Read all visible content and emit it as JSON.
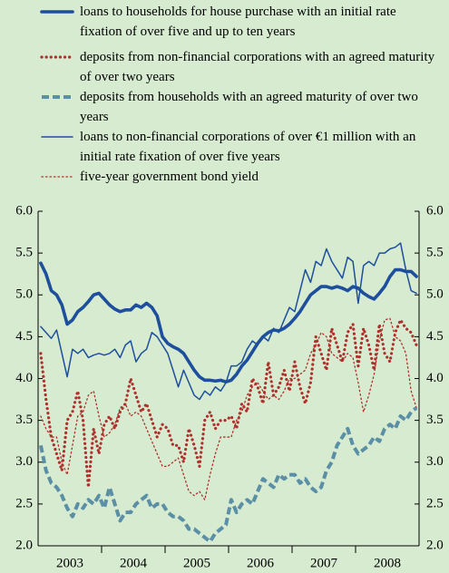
{
  "chart_data": {
    "type": "line",
    "categories": [
      "2003",
      null,
      null,
      null,
      null,
      null,
      null,
      null,
      null,
      null,
      null,
      null,
      "2004",
      null,
      null,
      null,
      null,
      null,
      null,
      null,
      null,
      null,
      null,
      null,
      "2005",
      null,
      null,
      null,
      null,
      null,
      null,
      null,
      null,
      null,
      null,
      null,
      "2006",
      null,
      null,
      null,
      null,
      null,
      null,
      null,
      null,
      null,
      null,
      null,
      "2007",
      null,
      null,
      null,
      null,
      null,
      null,
      null,
      null,
      null,
      null,
      null,
      "2008",
      null,
      null,
      null,
      null,
      null,
      null,
      null,
      null,
      null,
      null,
      null
    ],
    "ylim": [
      2,
      6
    ],
    "yticks": [
      {
        "value": 2,
        "label": "2.0"
      },
      {
        "value": 2.5,
        "label": "2.5"
      },
      {
        "value": 3,
        "label": "3.0"
      },
      {
        "value": 3.5,
        "label": "3.5"
      },
      {
        "value": 4,
        "label": "4.0"
      },
      {
        "value": 4.5,
        "label": "4.5"
      },
      {
        "value": 5,
        "label": "5.0"
      },
      {
        "value": 5.5,
        "label": "5.5"
      },
      {
        "value": 6,
        "label": "6.0"
      }
    ],
    "y2lim": [
      2,
      6
    ],
    "y2ticks": [
      {
        "value": 2,
        "label": "2.0"
      },
      {
        "value": 2.5,
        "label": "2.5"
      },
      {
        "value": 3,
        "label": "3.0"
      },
      {
        "value": 3.5,
        "label": "3.5"
      },
      {
        "value": 4,
        "label": "4.0"
      },
      {
        "value": 4.5,
        "label": "4.5"
      },
      {
        "value": 5,
        "label": "5.0"
      },
      {
        "value": 5.5,
        "label": "5.5"
      },
      {
        "value": 6,
        "label": "6.0"
      }
    ],
    "grid": false,
    "legend": "top",
    "series": [
      {
        "name": "loans to households for house purchase with an initial rate fixation of over five and up to ten years",
        "color": "#1e4f9c",
        "style": "thick-solid",
        "values": [
          5.38,
          5.25,
          5.05,
          5.0,
          4.88,
          4.65,
          4.7,
          4.8,
          4.85,
          4.92,
          5.0,
          5.02,
          4.95,
          4.88,
          4.83,
          4.8,
          4.82,
          4.82,
          4.88,
          4.85,
          4.9,
          4.85,
          4.75,
          4.5,
          4.42,
          4.38,
          4.35,
          4.3,
          4.2,
          4.1,
          4.02,
          3.98,
          3.98,
          3.97,
          3.98,
          3.96,
          3.98,
          4.05,
          4.15,
          4.22,
          4.32,
          4.42,
          4.5,
          4.55,
          4.58,
          4.57,
          4.6,
          4.65,
          4.72,
          4.8,
          4.9,
          5.0,
          5.05,
          5.1,
          5.1,
          5.08,
          5.1,
          5.08,
          5.05,
          5.1,
          5.08,
          5.02,
          4.98,
          4.95,
          5.02,
          5.1,
          5.22,
          5.3,
          5.3,
          5.28,
          5.28,
          5.22
        ]
      },
      {
        "name": "deposits from non-financial corporations with an agreed maturity of over two years",
        "color": "#b0302c",
        "style": "thick-dotted",
        "values": [
          4.3,
          3.75,
          3.3,
          3.1,
          2.9,
          3.5,
          3.6,
          3.85,
          3.5,
          2.7,
          3.4,
          3.1,
          3.45,
          3.55,
          3.4,
          3.6,
          3.7,
          4.0,
          3.8,
          3.6,
          3.7,
          3.5,
          3.3,
          3.45,
          3.4,
          3.2,
          3.2,
          3.0,
          3.4,
          3.2,
          2.95,
          3.5,
          3.6,
          3.4,
          3.5,
          3.5,
          3.55,
          3.4,
          3.7,
          3.6,
          4.0,
          3.9,
          3.7,
          4.2,
          3.8,
          3.9,
          4.1,
          3.85,
          4.2,
          3.9,
          3.7,
          3.95,
          4.5,
          4.3,
          4.1,
          4.6,
          4.4,
          4.2,
          4.55,
          4.65,
          4.15,
          4.6,
          4.4,
          4.1,
          4.65,
          4.3,
          4.2,
          4.55,
          4.7,
          4.6,
          4.55,
          4.4
        ]
      },
      {
        "name": "deposits from households with an agreed maturity of over two years",
        "color": "#5b8fa6",
        "style": "thick-dashed",
        "values": [
          3.2,
          2.9,
          2.75,
          2.7,
          2.6,
          2.45,
          2.35,
          2.5,
          2.45,
          2.55,
          2.5,
          2.6,
          2.45,
          2.7,
          2.5,
          2.3,
          2.4,
          2.4,
          2.5,
          2.55,
          2.6,
          2.45,
          2.5,
          2.5,
          2.4,
          2.35,
          2.35,
          2.3,
          2.2,
          2.2,
          2.15,
          2.1,
          2.05,
          2.15,
          2.2,
          2.25,
          2.55,
          2.4,
          2.5,
          2.55,
          2.5,
          2.65,
          2.8,
          2.75,
          2.7,
          2.85,
          2.8,
          2.85,
          2.85,
          2.75,
          2.8,
          2.7,
          2.65,
          2.7,
          2.9,
          3.0,
          3.2,
          3.3,
          3.4,
          3.2,
          3.1,
          3.15,
          3.2,
          3.3,
          3.25,
          3.4,
          3.45,
          3.4,
          3.55,
          3.5,
          3.6,
          3.65
        ]
      },
      {
        "name": "loans to non-financial corporations of over €1 million with an initial rate fixation of over five years",
        "color": "#1e4f9c",
        "style": "thin-solid",
        "values": [
          4.62,
          4.55,
          4.48,
          4.58,
          4.3,
          4.02,
          4.35,
          4.3,
          4.35,
          4.25,
          4.28,
          4.3,
          4.28,
          4.3,
          4.35,
          4.25,
          4.4,
          4.45,
          4.2,
          4.3,
          4.35,
          4.55,
          4.5,
          4.4,
          4.3,
          4.1,
          3.9,
          4.1,
          3.95,
          3.8,
          3.75,
          3.85,
          3.8,
          3.9,
          3.85,
          3.95,
          4.15,
          4.15,
          4.2,
          4.35,
          4.45,
          4.4,
          4.5,
          4.45,
          4.6,
          4.55,
          4.7,
          4.85,
          4.8,
          5.05,
          5.3,
          5.15,
          5.4,
          5.35,
          5.55,
          5.4,
          5.3,
          5.2,
          5.45,
          5.4,
          4.9,
          5.35,
          5.4,
          5.35,
          5.5,
          5.5,
          5.55,
          5.57,
          5.62,
          5.3,
          5.05,
          5.02
        ]
      },
      {
        "name": "five-year government bond yield",
        "color": "#b0302c",
        "style": "thin-dotted",
        "values": [
          3.55,
          3.4,
          3.3,
          3.3,
          3.0,
          2.85,
          3.2,
          3.55,
          3.6,
          3.8,
          3.85,
          3.55,
          3.3,
          3.35,
          3.45,
          3.65,
          3.7,
          3.55,
          3.6,
          3.55,
          3.4,
          3.25,
          3.1,
          2.95,
          2.95,
          3.0,
          3.05,
          2.85,
          2.65,
          2.6,
          2.65,
          2.55,
          2.85,
          3.1,
          3.3,
          3.3,
          3.3,
          3.5,
          3.6,
          3.8,
          3.9,
          3.95,
          3.85,
          3.75,
          3.8,
          3.75,
          3.85,
          4.0,
          4.0,
          4.05,
          4.1,
          4.3,
          4.4,
          4.55,
          4.5,
          4.3,
          4.25,
          4.2,
          4.3,
          4.25,
          3.95,
          3.6,
          3.8,
          4.05,
          4.45,
          4.7,
          4.72,
          4.5,
          4.45,
          4.3,
          3.85,
          3.65
        ]
      }
    ]
  }
}
